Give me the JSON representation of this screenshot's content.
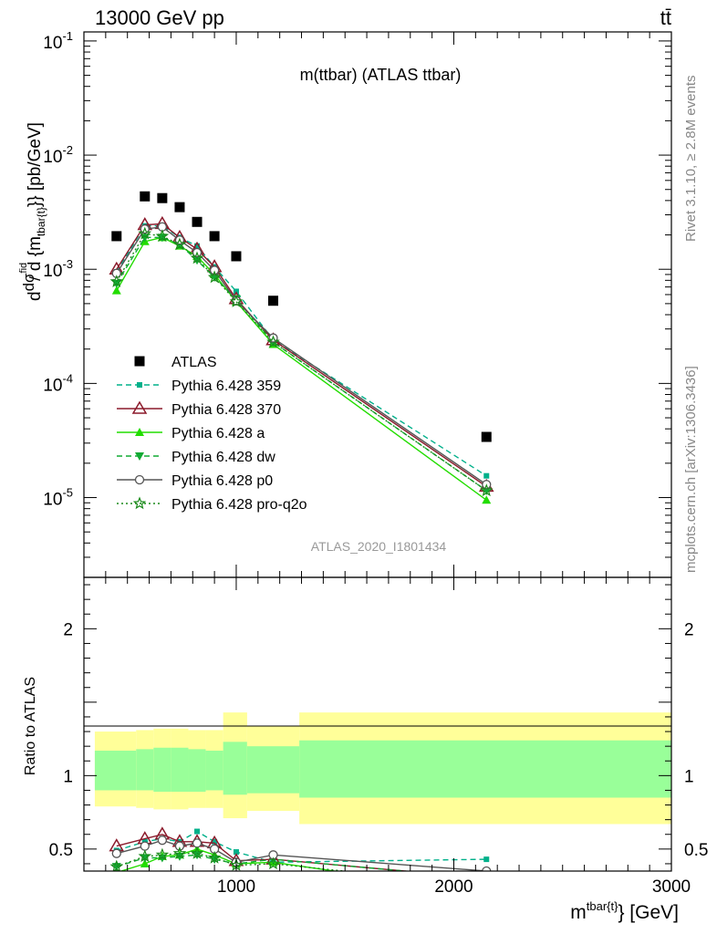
{
  "header": {
    "left": "13000 GeV pp",
    "right": "tt̄"
  },
  "side_labels": {
    "rivet": "Rivet 3.1.10, ≥ 2.8M events",
    "mcplots": "mcplots.cern.ch [arXiv:1306.3436]"
  },
  "chart_data": [
    {
      "type": "scatter",
      "panel": "main",
      "title": "m(ttbar) (ATLAS ttbar)",
      "watermark": "ATLAS_2020_I1801434",
      "ylabel": "d dσ^{fid} / d {m^{tbar{t}}} [pb/GeV]",
      "xlim": [
        300,
        3000
      ],
      "ylim": [
        2e-06,
        0.12
      ],
      "y_scale": "log",
      "yticks": [
        {
          "value": 0.1,
          "label": "10",
          "exp": "-1"
        },
        {
          "value": 0.01,
          "label": "10",
          "exp": "-2"
        },
        {
          "value": 0.001,
          "label": "10",
          "exp": "-3"
        },
        {
          "value": 0.0001,
          "label": "10",
          "exp": "-4"
        },
        {
          "value": 1e-05,
          "label": "10",
          "exp": "-5"
        }
      ],
      "legend_position": "lower-left",
      "x": [
        450,
        580,
        660,
        740,
        820,
        900,
        1000,
        1170,
        2150
      ],
      "series": [
        {
          "name": "ATLAS",
          "color": "#000000",
          "marker": "square",
          "line": "none",
          "values": [
            0.00195,
            0.00435,
            0.0042,
            0.0035,
            0.0026,
            0.00195,
            0.0013,
            0.00053,
            3.4e-05
          ]
        },
        {
          "name": "Pythia 6.428 359",
          "color": "#00b08a",
          "marker": "small-square",
          "line": "dashed",
          "values": [
            0.00095,
            0.0024,
            0.0024,
            0.0019,
            0.0016,
            0.00105,
            0.00064,
            0.00024,
            1.55e-05
          ]
        },
        {
          "name": "Pythia 6.428 370",
          "color": "#8b1a2b",
          "marker": "open-triangle",
          "line": "solid",
          "values": [
            0.001,
            0.00245,
            0.0025,
            0.0019,
            0.0015,
            0.00105,
            0.00055,
            0.00024,
            1.25e-05
          ]
        },
        {
          "name": "Pythia 6.428 a",
          "color": "#22dd00",
          "marker": "filled-triangle",
          "line": "solid",
          "values": [
            0.00065,
            0.00175,
            0.0019,
            0.0016,
            0.0013,
            0.0009,
            0.00052,
            0.00022,
            9.5e-06
          ]
        },
        {
          "name": "Pythia 6.428 dw",
          "color": "#11aa33",
          "marker": "filled-triangle-down",
          "line": "dashed",
          "values": [
            0.00075,
            0.0019,
            0.0019,
            0.00165,
            0.0012,
            0.00085,
            0.00055,
            0.00023,
            1.15e-05
          ]
        },
        {
          "name": "Pythia 6.428 p0",
          "color": "#555555",
          "marker": "open-circle",
          "line": "solid",
          "values": [
            0.00092,
            0.00225,
            0.00235,
            0.0018,
            0.0014,
            0.00098,
            0.00053,
            0.00025,
            1.3e-05
          ]
        },
        {
          "name": "Pythia 6.428 pro-q2o",
          "color": "#1a8a1a",
          "marker": "open-star",
          "line": "dotted",
          "values": [
            0.00078,
            0.00205,
            0.00195,
            0.00165,
            0.00125,
            0.00085,
            0.00052,
            0.00023,
            1.15e-05
          ]
        }
      ]
    },
    {
      "type": "line",
      "panel": "ratio",
      "ylabel": "Ratio to ATLAS",
      "xlabel": "m^{tbar{t}} [GeV]",
      "xlim": [
        300,
        3000
      ],
      "ylim": [
        0.35,
        2.35
      ],
      "yticks": [
        {
          "value": 0.5,
          "label": "0.5"
        },
        {
          "value": 1,
          "label": "1"
        },
        {
          "value": 2,
          "label": "2"
        }
      ],
      "xticks": [
        {
          "value": 1000,
          "label": "1000"
        },
        {
          "value": 2000,
          "label": "2000"
        },
        {
          "value": 3000,
          "label": "3000"
        }
      ],
      "bands": [
        {
          "x0": 350,
          "x1": 540,
          "outer": [
            0.79,
            1.3
          ],
          "inner": [
            0.9,
            1.17
          ]
        },
        {
          "x0": 540,
          "x1": 620,
          "outer": [
            0.78,
            1.31
          ],
          "inner": [
            0.9,
            1.18
          ]
        },
        {
          "x0": 620,
          "x1": 700,
          "outer": [
            0.77,
            1.32
          ],
          "inner": [
            0.89,
            1.19
          ]
        },
        {
          "x0": 700,
          "x1": 780,
          "outer": [
            0.77,
            1.32
          ],
          "inner": [
            0.89,
            1.19
          ]
        },
        {
          "x0": 780,
          "x1": 860,
          "outer": [
            0.78,
            1.31
          ],
          "inner": [
            0.89,
            1.18
          ]
        },
        {
          "x0": 860,
          "x1": 940,
          "outer": [
            0.78,
            1.31
          ],
          "inner": [
            0.9,
            1.17
          ]
        },
        {
          "x0": 940,
          "x1": 1050,
          "outer": [
            0.71,
            1.43
          ],
          "inner": [
            0.87,
            1.23
          ]
        },
        {
          "x0": 1050,
          "x1": 1290,
          "outer": [
            0.76,
            1.34
          ],
          "inner": [
            0.88,
            1.2
          ]
        },
        {
          "x0": 1290,
          "x1": 3000,
          "outer": [
            0.67,
            1.43
          ],
          "inner": [
            0.85,
            1.24
          ]
        }
      ],
      "x": [
        450,
        580,
        660,
        740,
        820,
        900,
        1000,
        1170,
        2150
      ],
      "series": [
        {
          "name": "Pythia 6.428 359",
          "color": "#00b08a",
          "marker": "small-square",
          "line": "dashed",
          "values": [
            0.49,
            0.55,
            0.57,
            0.55,
            0.62,
            0.55,
            0.48,
            0.41,
            0.43
          ]
        },
        {
          "name": "Pythia 6.428 370",
          "color": "#8b1a2b",
          "marker": "open-triangle",
          "line": "solid",
          "values": [
            0.52,
            0.57,
            0.6,
            0.55,
            0.55,
            0.54,
            0.42,
            0.43,
            0.3
          ]
        },
        {
          "name": "Pythia 6.428 a",
          "color": "#22dd00",
          "marker": "filled-triangle",
          "line": "solid",
          "values": [
            0.34,
            0.4,
            0.45,
            0.46,
            0.5,
            0.46,
            0.4,
            0.41,
            0.2
          ]
        },
        {
          "name": "Pythia 6.428 dw",
          "color": "#11aa33",
          "marker": "filled-triangle-down",
          "line": "dashed",
          "values": [
            0.38,
            0.44,
            0.44,
            0.45,
            0.46,
            0.43,
            0.4,
            0.43,
            0.3
          ]
        },
        {
          "name": "Pythia 6.428 p0",
          "color": "#555555",
          "marker": "open-circle",
          "line": "solid",
          "values": [
            0.47,
            0.52,
            0.56,
            0.52,
            0.54,
            0.5,
            0.41,
            0.46,
            0.35
          ]
        },
        {
          "name": "Pythia 6.428 pro-q2o",
          "color": "#1a8a1a",
          "marker": "open-star",
          "line": "dotted",
          "values": [
            0.38,
            0.45,
            0.46,
            0.47,
            0.47,
            0.44,
            0.39,
            0.4,
            0.25
          ]
        }
      ]
    }
  ]
}
